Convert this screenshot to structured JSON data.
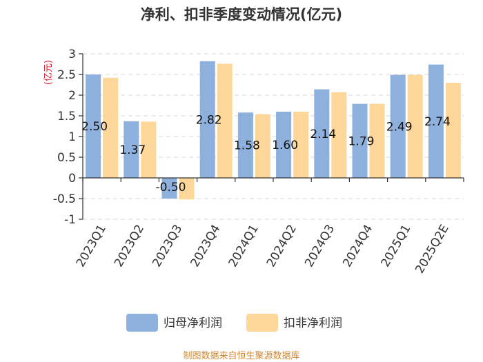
{
  "chart_data": {
    "type": "bar",
    "title": "净利、扣非季度变动情况(亿元)",
    "ylabel": "(亿元)",
    "xlabel": "",
    "categories": [
      "2023Q1",
      "2023Q2",
      "2023Q3",
      "2023Q4",
      "2024Q1",
      "2024Q2",
      "2024Q3",
      "2024Q4",
      "2025Q1",
      "2025Q2E"
    ],
    "series": [
      {
        "name": "归母净利润",
        "color": "#8eb0dd",
        "values": [
          2.5,
          1.37,
          -0.5,
          2.82,
          1.58,
          1.6,
          2.14,
          1.79,
          2.49,
          2.74
        ]
      },
      {
        "name": "扣非净利润",
        "color": "#fdd699",
        "values": [
          2.42,
          1.36,
          -0.52,
          2.76,
          1.54,
          1.6,
          2.07,
          1.79,
          2.49,
          2.3
        ]
      }
    ],
    "data_labels": [
      "2.50",
      "1.37",
      "-0.50",
      "2.82",
      "1.58",
      "1.60",
      "2.14",
      "1.79",
      "2.49",
      "2.74"
    ],
    "yticks": [
      "3",
      "2.5",
      "2",
      "1.5",
      "1",
      "0.5",
      "0",
      "-0.5",
      "-1"
    ],
    "ylim": [
      -1,
      3
    ],
    "grid": true,
    "legend": "bottom"
  },
  "footer": {
    "source": "制图数据来自恒生聚源数据库"
  }
}
